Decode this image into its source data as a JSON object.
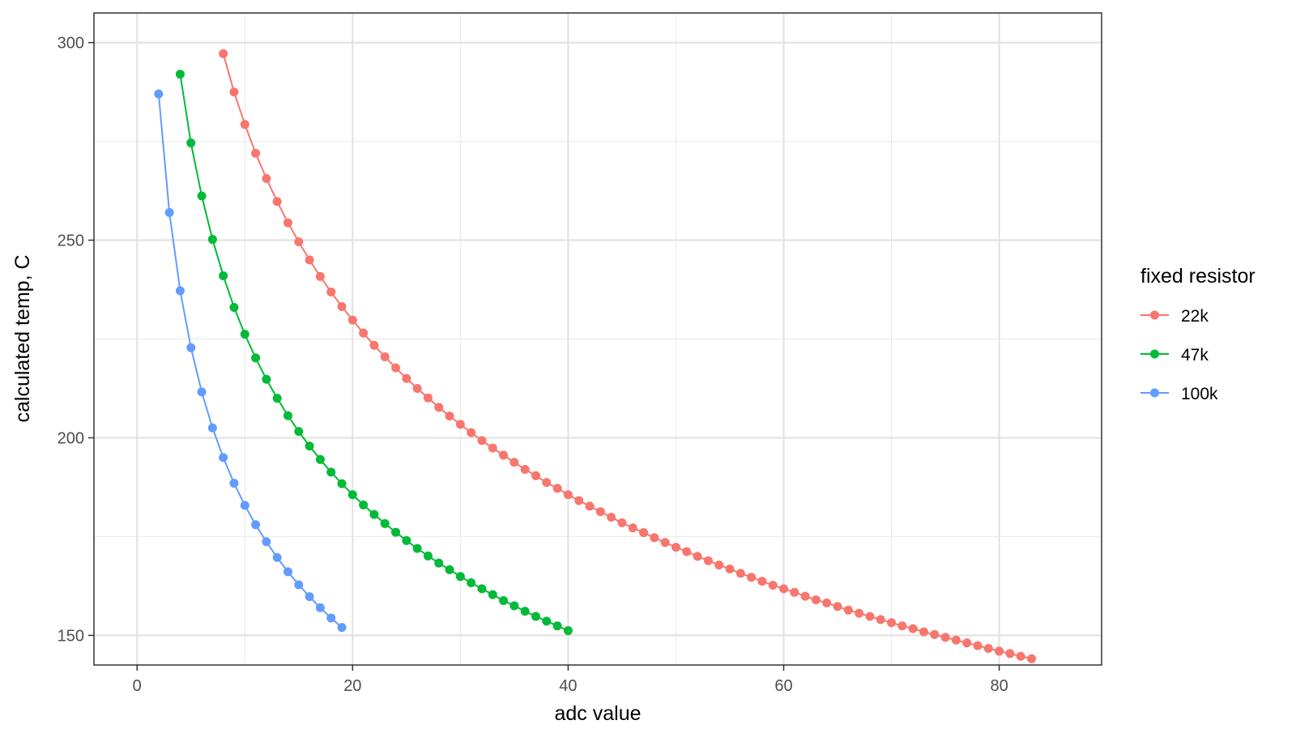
{
  "chart_data": {
    "type": "line",
    "xlabel": "adc value",
    "ylabel": "calculated temp, C",
    "xlim": [
      -4,
      89.5
    ],
    "ylim": [
      142.5,
      307.5
    ],
    "xticks": [
      0,
      20,
      40,
      60,
      80
    ],
    "yticks": [
      150,
      200,
      250,
      300
    ],
    "grid": true,
    "markers": true,
    "legend": {
      "title": "fixed resistor",
      "position": "right"
    },
    "series": [
      {
        "name": "22k",
        "color": "#F8766D",
        "x": [
          8,
          9,
          10,
          11,
          12,
          13,
          14,
          15,
          16,
          17,
          18,
          19,
          20,
          21,
          22,
          23,
          24,
          25,
          26,
          27,
          28,
          29,
          30,
          31,
          32,
          33,
          34,
          35,
          36,
          37,
          38,
          39,
          40,
          41,
          42,
          43,
          44,
          45,
          46,
          47,
          48,
          49,
          50,
          51,
          52,
          53,
          54,
          55,
          56,
          57,
          58,
          59,
          60,
          61,
          62,
          63,
          64,
          65,
          66,
          67,
          68,
          69,
          70,
          71,
          72,
          73,
          74,
          75,
          76,
          77,
          78,
          79,
          80,
          81,
          82,
          83
        ],
        "y": [
          297.2,
          287.5,
          279.3,
          272.0,
          265.6,
          259.8,
          254.4,
          249.6,
          245.0,
          240.8,
          236.9,
          233.2,
          229.8,
          226.5,
          223.4,
          220.5,
          217.7,
          215.0,
          212.5,
          210.1,
          207.7,
          205.5,
          203.4,
          201.3,
          199.3,
          197.4,
          195.6,
          193.8,
          192.0,
          190.4,
          188.7,
          187.2,
          185.6,
          184.1,
          182.7,
          181.3,
          179.9,
          178.5,
          177.2,
          176.0,
          174.7,
          173.5,
          172.3,
          171.2,
          170.0,
          168.9,
          167.8,
          166.8,
          165.7,
          164.7,
          163.7,
          162.7,
          161.8,
          160.9,
          159.9,
          159.0,
          158.2,
          157.3,
          156.4,
          155.6,
          154.8,
          154.0,
          153.2,
          152.4,
          151.7,
          150.9,
          150.2,
          149.5,
          148.8,
          148.1,
          147.4,
          146.7,
          146.0,
          145.4,
          144.7,
          144.1
        ]
      },
      {
        "name": "47k",
        "color": "#00BA38",
        "x": [
          4,
          5,
          6,
          7,
          8,
          9,
          10,
          11,
          12,
          13,
          14,
          15,
          16,
          17,
          18,
          19,
          20,
          21,
          22,
          23,
          24,
          25,
          26,
          27,
          28,
          29,
          30,
          31,
          32,
          33,
          34,
          35,
          36,
          37,
          38,
          39,
          40
        ],
        "y": [
          292.0,
          274.6,
          261.2,
          250.2,
          241.0,
          233.0,
          226.2,
          220.2,
          214.8,
          210.0,
          205.6,
          201.6,
          197.9,
          194.5,
          191.3,
          188.4,
          185.6,
          183.0,
          180.6,
          178.3,
          176.1,
          174.0,
          172.0,
          170.1,
          168.3,
          166.6,
          164.9,
          163.3,
          161.8,
          160.3,
          158.8,
          157.5,
          156.1,
          154.8,
          153.6,
          152.4,
          151.2
        ]
      },
      {
        "name": "100k",
        "color": "#619CFF",
        "x": [
          2,
          3,
          4,
          5,
          6,
          7,
          8,
          9,
          10,
          11,
          12,
          13,
          14,
          15,
          16,
          17,
          18,
          19
        ],
        "y": [
          287.0,
          257.0,
          237.2,
          222.8,
          211.6,
          202.5,
          195.0,
          188.5,
          182.9,
          178.0,
          173.7,
          169.7,
          166.1,
          162.8,
          159.8,
          157.0,
          154.4,
          152.0
        ]
      }
    ]
  }
}
